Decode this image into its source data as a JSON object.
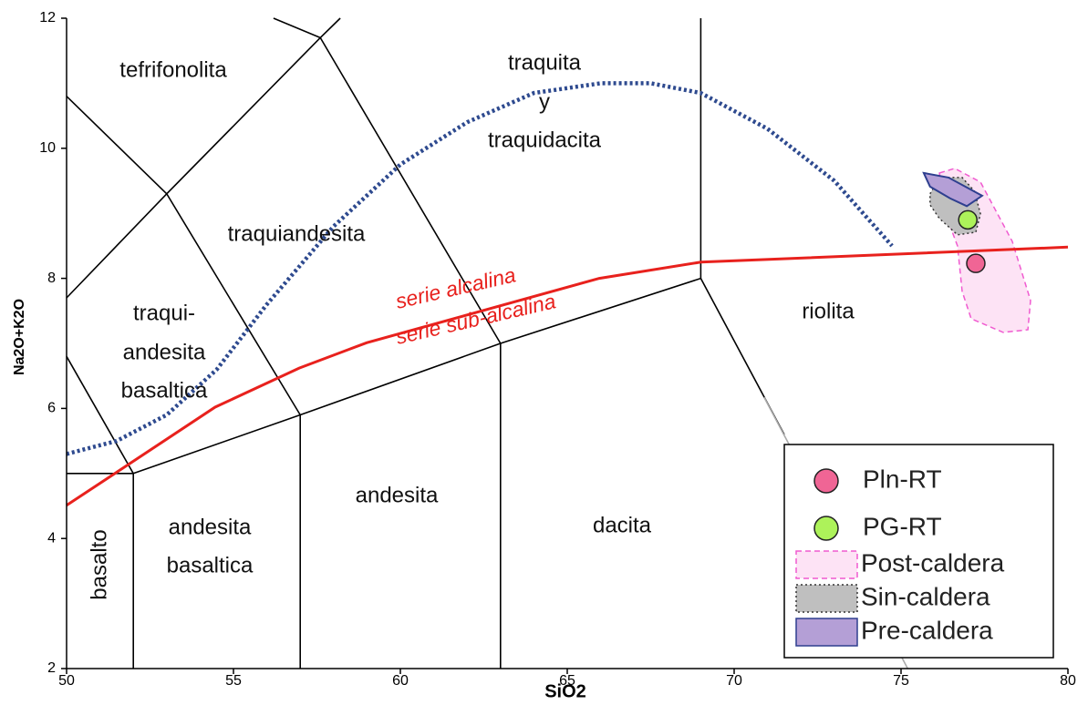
{
  "chart_data": {
    "type": "scatter",
    "xlabel": "SiO2",
    "ylabel": "Na2O+K2O",
    "xlim": [
      50,
      80
    ],
    "ylim": [
      2,
      12
    ],
    "xticks": [
      50,
      55,
      60,
      65,
      70,
      75,
      80
    ],
    "yticks": [
      2,
      4,
      6,
      8,
      10,
      12
    ],
    "legend": "lower right",
    "series": [
      {
        "name": "Pln-RT",
        "color": "#f06595",
        "x": [
          77.24
        ],
        "values": [
          8.23
        ]
      },
      {
        "name": "PG-RT",
        "color": "#adf25a",
        "x": [
          77.0
        ],
        "values": [
          8.9
        ]
      }
    ],
    "regions": [
      {
        "name": "Post-caldera",
        "color": "#fde3f5",
        "edge": "#f05ad0",
        "x": [
          76.15,
          76.61,
          77.38,
          78.33,
          78.88,
          78.8,
          78.06,
          77.1,
          76.83,
          76.69,
          76.28
        ],
        "values": [
          9.62,
          9.69,
          9.48,
          8.57,
          7.66,
          7.21,
          7.17,
          7.38,
          7.8,
          8.5,
          9.06
        ]
      },
      {
        "name": "Sin-caldera",
        "color": "#bfbfbf",
        "edge": "#333333",
        "x": [
          75.87,
          76.15,
          76.83,
          77.2,
          77.38,
          77.24,
          76.69,
          76.15,
          75.87
        ],
        "values": [
          9.3,
          9.55,
          9.55,
          9.34,
          8.99,
          8.71,
          8.67,
          8.92,
          9.13
        ]
      },
      {
        "name": "Pre-caldera",
        "color": "#b49fd6",
        "edge": "#2e3f8f",
        "x": [
          75.68,
          76.42,
          77.43,
          76.97,
          76.47,
          75.87
        ],
        "values": [
          9.62,
          9.55,
          9.27,
          9.11,
          9.23,
          9.41
        ]
      }
    ],
    "boundaries": [
      {
        "color": "#000000",
        "x": [
          50,
          52
        ],
        "values": [
          5,
          5
        ]
      },
      {
        "color": "#000000",
        "x": [
          52,
          52
        ],
        "values": [
          2,
          5
        ]
      },
      {
        "color": "#000000",
        "x": [
          52,
          57,
          63,
          69
        ],
        "values": [
          5,
          5.9,
          7,
          8
        ]
      },
      {
        "color": "#000000",
        "x": [
          57,
          57
        ],
        "values": [
          2,
          5.9
        ]
      },
      {
        "color": "#000000",
        "x": [
          63,
          63
        ],
        "values": [
          2,
          7
        ]
      },
      {
        "color": "#000000",
        "x": [
          69,
          69
        ],
        "values": [
          8,
          12
        ]
      },
      {
        "color": "#000000",
        "x": [
          69,
          71.5
        ],
        "values": [
          8,
          5.6
        ]
      },
      {
        "color": "#aaaaaa",
        "x": [
          70.9,
          75.2
        ],
        "values": [
          6.17,
          2
        ]
      },
      {
        "color": "#000000",
        "x": [
          52,
          50
        ],
        "values": [
          5,
          6.8
        ]
      },
      {
        "color": "#000000",
        "x": [
          57,
          53,
          57.6,
          58.2
        ],
        "values": [
          5.9,
          9.3,
          11.7,
          12
        ]
      },
      {
        "color": "#000000",
        "x": [
          50,
          53
        ],
        "values": [
          7.7,
          9.3
        ]
      },
      {
        "color": "#000000",
        "x": [
          50,
          53
        ],
        "values": [
          10.8,
          9.3
        ]
      },
      {
        "color": "#000000",
        "x": [
          63,
          57.6,
          56.2
        ],
        "values": [
          7,
          11.7,
          12
        ]
      }
    ],
    "divide": {
      "labels": [
        "serie alcalina",
        "serie sub-alcalina"
      ],
      "color": "#e8211d",
      "x": [
        50,
        54.45,
        56.97,
        58.99,
        65.96,
        69,
        80
      ],
      "values": [
        4.51,
        6.02,
        6.62,
        7.01,
        8.0,
        8.25,
        8.48
      ]
    },
    "curve": {
      "color": "#2e4a8f",
      "x": [
        50,
        51.5,
        53,
        54.5,
        56,
        58,
        60,
        62,
        64,
        66,
        67.5,
        69,
        71,
        73,
        74.73
      ],
      "values": [
        5.3,
        5.5,
        5.9,
        6.6,
        7.6,
        8.8,
        9.75,
        10.4,
        10.85,
        11.0,
        11.0,
        10.85,
        10.3,
        9.5,
        8.5
      ]
    },
    "field_labels": [
      "tefrifonolita",
      "traquita",
      "y",
      "traquidacita",
      "traquiandesita",
      "traqui-",
      "andesita",
      "basaltica",
      "andesita",
      "dacita",
      "riolita",
      "andesita",
      "basaltica",
      "basalto"
    ]
  }
}
